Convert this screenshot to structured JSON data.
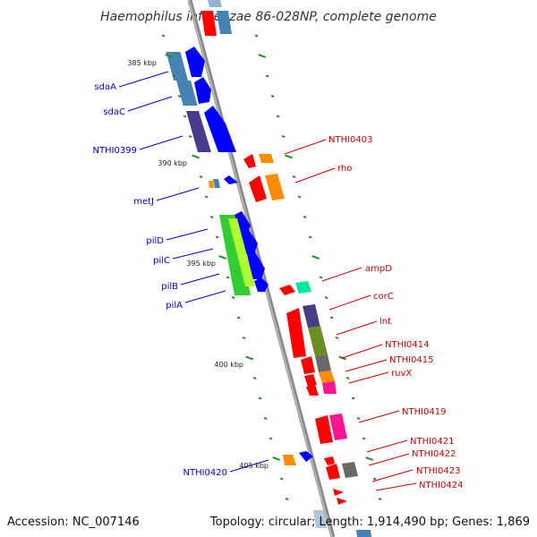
{
  "title": "Haemophilus influenzae 86-028NP, complete genome",
  "footer": {
    "accession": "Accession: NC_007146",
    "summary": "Topology: circular; Length: 1,914,490 bp; Genes: 1,869"
  },
  "scale_labels": [
    "385 kbp",
    "390 kbp",
    "395 kbp",
    "400 kbp",
    "405 kbp"
  ],
  "left_labels": [
    "sdaA",
    "sdaC",
    "NTHI0399",
    "metJ",
    "pilD",
    "pilC",
    "pilB",
    "pilA",
    "NTHI0420"
  ],
  "right_labels": [
    "NTHI0403",
    "rho",
    "ampD",
    "corC",
    "lnt",
    "NTHI0414",
    "NTHI0415",
    "ruvX",
    "NTHI0419",
    "NTHI0421",
    "NTHI0422",
    "NTHI0423",
    "NTHI0424"
  ],
  "colors": {
    "forward_label": "#0000cc",
    "reverse_label": "#cc0000",
    "backbone": "#8a8a8a",
    "tick": "#228b22",
    "gene_blue": "#0000ff",
    "gene_red": "#ff0000",
    "gene_orange": "#ff8c00",
    "gene_steel": "#4682b4",
    "gene_slate": "#483d8b",
    "gene_olive": "#6b8e23",
    "gene_green": "#32cd32",
    "gene_yellowgreen": "#adff2f",
    "gene_gray": "#696969",
    "gene_magenta": "#ff1493",
    "gene_aqua": "#00e5a0"
  }
}
